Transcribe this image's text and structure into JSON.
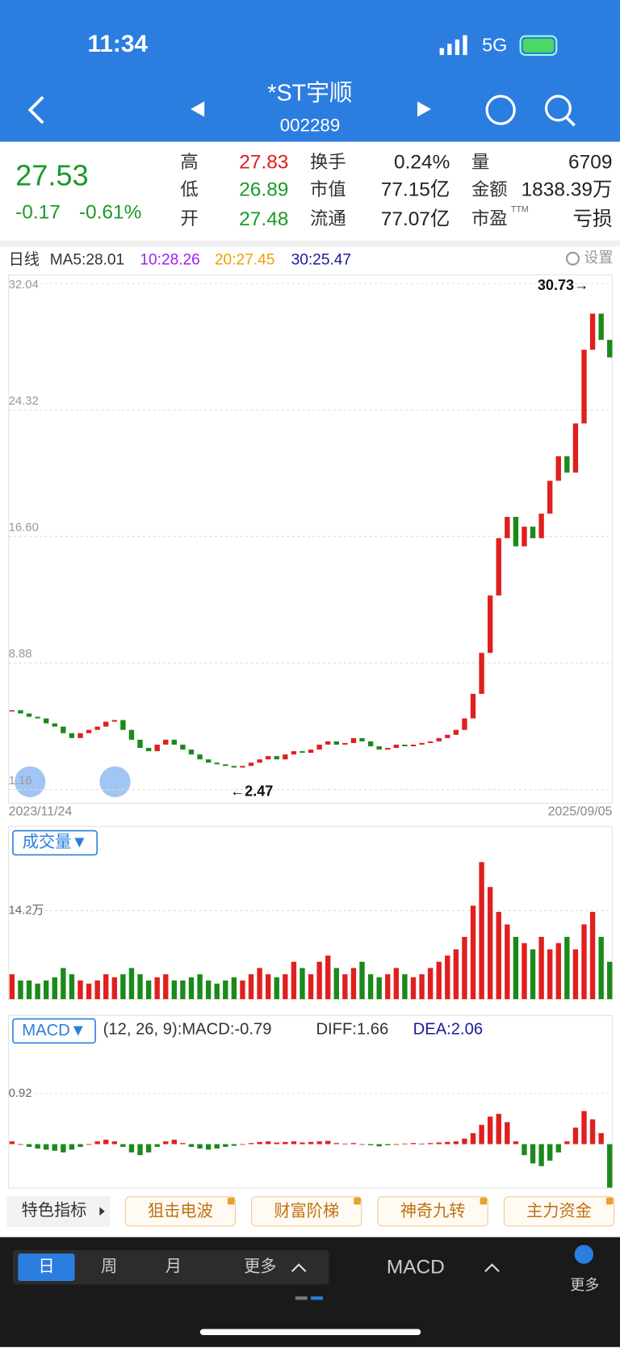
{
  "status_bar": {
    "time": "11:34",
    "network": "5G"
  },
  "header": {
    "title": "*ST宇顺",
    "code": "002289"
  },
  "quote": {
    "price": "27.53",
    "change": "-0.17",
    "change_pct": "-0.61%",
    "stats": [
      {
        "label": "高",
        "value": "27.83",
        "color": "#e0201e"
      },
      {
        "label": "换手",
        "value": "0.24%",
        "color": "#222222"
      },
      {
        "label": "量",
        "value": "6709",
        "color": "#222222"
      },
      {
        "label": "低",
        "value": "26.89",
        "color": "#1a9a2a"
      },
      {
        "label": "市值",
        "value": "77.15亿",
        "color": "#222222"
      },
      {
        "label": "金额",
        "value": "1838.39万",
        "color": "#222222"
      },
      {
        "label": "开",
        "value": "27.48",
        "color": "#1a9a2a"
      },
      {
        "label": "流通",
        "value": "77.07亿",
        "color": "#222222"
      },
      {
        "label": "市盈",
        "sup": "TTM",
        "value": "亏损",
        "color": "#222222"
      }
    ]
  },
  "price_chart": {
    "type": "candlestick",
    "period": "日线",
    "ma_labels": [
      {
        "text": "MA5:28.01",
        "color": "#333333"
      },
      {
        "text": "10:28.26",
        "color": "#a020f0"
      },
      {
        "text": "20:27.45",
        "color": "#f0a000"
      },
      {
        "text": "30:25.47",
        "color": "#1a1a9a"
      }
    ],
    "settings": "设置",
    "ylim": [
      1.16,
      32.04
    ],
    "yticks": [
      32.04,
      24.32,
      {
        "value": 16.6,
        "label": "16.60"
      },
      8.88,
      1.16
    ],
    "close": [
      6.0,
      5.8,
      5.6,
      5.5,
      5.2,
      5.0,
      4.6,
      4.3,
      4.6,
      4.8,
      5.0,
      5.3,
      5.4,
      4.8,
      4.2,
      3.7,
      3.5,
      3.9,
      4.2,
      3.9,
      3.6,
      3.3,
      3.0,
      2.8,
      2.7,
      2.6,
      2.5,
      2.6,
      2.8,
      3.0,
      3.2,
      3.0,
      3.3,
      3.5,
      3.4,
      3.6,
      3.9,
      4.1,
      3.9,
      4.0,
      4.3,
      4.1,
      3.8,
      3.6,
      3.7,
      3.9,
      3.8,
      3.9,
      4.0,
      4.1,
      4.3,
      4.5,
      4.8,
      5.5,
      7.0,
      9.5,
      13.0,
      16.5,
      17.8,
      16.0,
      17.2,
      16.5,
      18.0,
      20.0,
      21.5,
      20.5,
      23.5,
      28.0,
      30.2,
      28.6,
      27.53
    ],
    "up_color": "#e0201e",
    "down_color": "#1a8a1a",
    "high_label": "30.73→",
    "low_label": "←2.47",
    "start_date": "2023/11/24",
    "end_date": "2025/09/05"
  },
  "volume_chart": {
    "type": "bar",
    "title": "成交量▼",
    "ylim": [
      0,
      27.3
    ],
    "yticks": [
      {
        "value": 14.2,
        "label": "14.2万"
      }
    ],
    "values": [
      4,
      3,
      3,
      2.5,
      3,
      3.5,
      5,
      4,
      3,
      2.5,
      3,
      4,
      3.5,
      4,
      5,
      4,
      3,
      3.5,
      4,
      3,
      3,
      3.5,
      4,
      3,
      2.5,
      3,
      3.5,
      3,
      4,
      5,
      4,
      3.5,
      4,
      6,
      5,
      4,
      6,
      7,
      5,
      4,
      5,
      6,
      4,
      3.5,
      4,
      5,
      4,
      3.5,
      4,
      5,
      6,
      7,
      8,
      10,
      15,
      22,
      18,
      14,
      12,
      10,
      9,
      8,
      10,
      8,
      9,
      10,
      8,
      12,
      14,
      10,
      6
    ]
  },
  "macd_chart": {
    "type": "bar",
    "title": "MACD▼",
    "params": "(12, 26, 9):MACD:-0.79",
    "diff": "DIFF:1.66",
    "dea": "DEA:2.06",
    "ylim": [
      -0.8,
      2.29
    ],
    "yticks": [
      0.92
    ],
    "values": [
      0.05,
      0,
      -0.05,
      -0.08,
      -0.1,
      -0.12,
      -0.15,
      -0.1,
      -0.05,
      0,
      0.05,
      0.08,
      0.05,
      -0.05,
      -0.15,
      -0.2,
      -0.15,
      -0.05,
      0.05,
      0.08,
      0.02,
      -0.05,
      -0.08,
      -0.1,
      -0.08,
      -0.05,
      -0.03,
      0,
      0.02,
      0.04,
      0.05,
      0.03,
      0.04,
      0.05,
      0.03,
      0.04,
      0.05,
      0.06,
      0.02,
      0.01,
      0.02,
      0,
      -0.02,
      -0.04,
      -0.02,
      0,
      0.01,
      0.02,
      0.01,
      0.02,
      0.03,
      0.04,
      0.05,
      0.1,
      0.2,
      0.35,
      0.5,
      0.55,
      0.4,
      0.05,
      -0.2,
      -0.35,
      -0.4,
      -0.3,
      -0.15,
      0.05,
      0.3,
      0.6,
      0.45,
      0.2,
      -0.79
    ]
  },
  "indicator_tabs": [
    "特色指标",
    "狙击电波",
    "财富阶梯",
    "神奇九转",
    "主力资金"
  ],
  "bottom_bar": {
    "periods": [
      "日",
      "周",
      "月",
      "更多"
    ],
    "indicator": "MACD",
    "more": "更多"
  }
}
